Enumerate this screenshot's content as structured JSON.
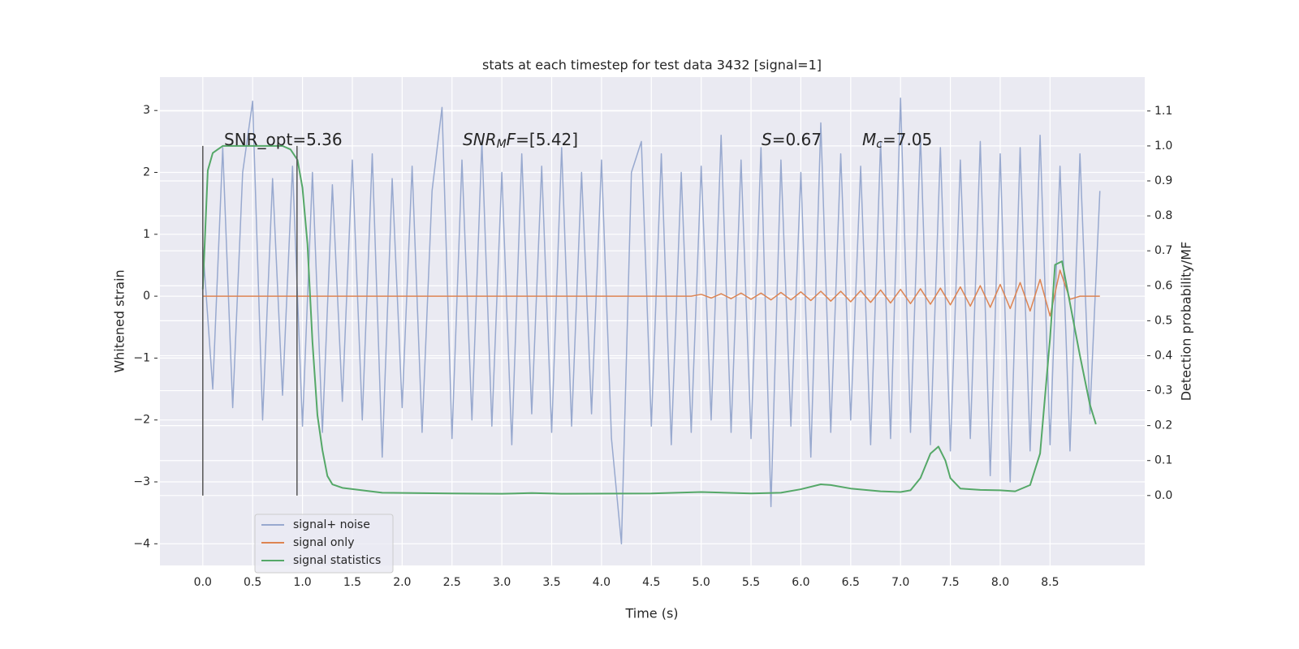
{
  "chart_data": {
    "type": "line",
    "title": "stats at each timestep for test data 3432 [signal=1]",
    "xlabel": "Time (s)",
    "ylabel": "Whitened strain",
    "y2label": "Detection probability/MF",
    "xlim": [
      -0.43,
      9.45
    ],
    "ylim": [
      -4.35,
      3.54
    ],
    "y2lim": [
      -0.2,
      1.197
    ],
    "xticks": [
      {
        "value": 0,
        "label": "0.0"
      },
      0.5,
      {
        "value": 1,
        "label": "1.0"
      },
      1.5,
      {
        "value": 2,
        "label": "2.0"
      },
      2.5,
      {
        "value": 3,
        "label": "3.0"
      },
      3.5,
      {
        "value": 4,
        "label": "4.0"
      },
      4.5,
      {
        "value": 5,
        "label": "5.0"
      },
      5.5,
      {
        "value": 6,
        "label": "6.0"
      },
      6.5,
      {
        "value": 7,
        "label": "7.0"
      },
      7.5,
      {
        "value": 8,
        "label": "8.0"
      },
      8.5
    ],
    "yticks": [
      {
        "value": -4,
        "label": "−4"
      },
      {
        "value": -3,
        "label": "−3"
      },
      {
        "value": -2,
        "label": "−2"
      },
      {
        "value": -1,
        "label": "−1"
      },
      0,
      1,
      2,
      3
    ],
    "y2ticks": [
      {
        "value": 0,
        "label": "0.0"
      },
      0.1,
      0.2,
      0.3,
      0.4,
      0.5,
      0.6,
      0.7,
      0.8,
      0.9,
      {
        "value": 1,
        "label": "1.0"
      },
      1.1
    ],
    "grid": true,
    "legend": "lower left",
    "x": [
      0,
      0.1,
      0.2,
      0.3,
      0.4,
      0.5,
      0.6,
      0.7,
      0.8,
      0.9,
      1,
      1.1,
      1.2,
      1.3,
      1.4,
      1.5,
      1.6,
      1.7,
      1.8,
      1.9,
      2,
      2.1,
      2.2,
      2.3,
      2.4,
      2.5,
      2.6,
      2.7,
      2.8,
      2.9,
      3,
      3.1,
      3.2,
      3.3,
      3.4,
      3.5,
      3.6,
      3.7,
      3.8,
      3.9,
      4,
      4.1,
      4.2,
      4.3,
      4.4,
      4.5,
      4.6,
      4.7,
      4.8,
      4.9,
      5,
      5.1,
      5.2,
      5.3,
      5.4,
      5.5,
      5.6,
      5.7,
      5.8,
      5.9,
      6,
      6.1,
      6.2,
      6.3,
      6.4,
      6.5,
      6.6,
      6.7,
      6.8,
      6.9,
      7,
      7.1,
      7.2,
      7.3,
      7.4,
      7.5,
      7.6,
      7.7,
      7.8,
      7.9,
      8,
      8.1,
      8.2,
      8.3,
      8.4,
      8.5,
      8.6,
      8.7,
      8.8,
      8.9,
      9
    ],
    "series": [
      {
        "name": "signal+ noise",
        "color": "#98a9cf",
        "values": [
          0.8,
          -1.5,
          2.4,
          -1.8,
          2.0,
          3.15,
          -2.0,
          1.9,
          -1.6,
          2.1,
          -2.1,
          2.0,
          -2.2,
          1.8,
          -1.7,
          2.2,
          -2.0,
          2.3,
          -2.6,
          1.9,
          -1.8,
          2.1,
          -2.2,
          1.7,
          3.05,
          -2.3,
          2.2,
          -2.0,
          2.5,
          -2.1,
          2.0,
          -2.4,
          2.3,
          -1.9,
          2.1,
          -2.2,
          2.4,
          -2.1,
          2.0,
          -1.9,
          2.2,
          -2.3,
          -4.0,
          2.0,
          2.5,
          -2.1,
          2.3,
          -2.4,
          2.0,
          -2.2,
          2.1,
          -2.0,
          2.6,
          -2.2,
          2.2,
          -2.3,
          2.4,
          -3.4,
          2.2,
          -2.1,
          2.0,
          -2.6,
          2.8,
          -2.2,
          2.3,
          -2.0,
          2.1,
          -2.4,
          2.5,
          -2.3,
          3.2,
          -2.2,
          2.6,
          -2.4,
          2.4,
          -2.5,
          2.2,
          -2.3,
          2.5,
          -2.9,
          2.3,
          -3.0,
          2.4,
          -2.5,
          2.6,
          -2.4,
          2.1,
          -2.5,
          2.3,
          -1.9,
          1.7
        ]
      },
      {
        "name": "signal only",
        "color": "#dd8452",
        "values": [
          0,
          0,
          0,
          0,
          0,
          0,
          0,
          0,
          0,
          0,
          0,
          0,
          0,
          0,
          0,
          0,
          0,
          0,
          0,
          0,
          0,
          0,
          0,
          0,
          0,
          0,
          0,
          0,
          0,
          0,
          0,
          0,
          0,
          0,
          0,
          0,
          0,
          0,
          0,
          0,
          0,
          0,
          0,
          0,
          0,
          0,
          0,
          0,
          0,
          0,
          0.03,
          -0.03,
          0.04,
          -0.04,
          0.05,
          -0.05,
          0.05,
          -0.06,
          0.06,
          -0.06,
          0.07,
          -0.07,
          0.08,
          -0.08,
          0.08,
          -0.09,
          0.09,
          -0.1,
          0.1,
          -0.11,
          0.11,
          -0.12,
          0.12,
          -0.13,
          0.13,
          -0.14,
          0.15,
          -0.16,
          0.17,
          -0.18,
          0.19,
          -0.2,
          0.22,
          -0.24,
          0.27,
          -0.32,
          0.42,
          -0.05,
          0,
          0,
          0
        ]
      },
      {
        "name": "signal statistics",
        "color": "#55a868",
        "axis": "y2",
        "x": [
          0,
          0.05,
          0.1,
          0.15,
          0.2,
          0.3,
          0.4,
          0.5,
          0.6,
          0.7,
          0.8,
          0.88,
          0.95,
          1.0,
          1.05,
          1.1,
          1.15,
          1.2,
          1.25,
          1.3,
          1.4,
          1.6,
          1.8,
          2.5,
          3.0,
          3.3,
          3.6,
          4.5,
          5.0,
          5.5,
          5.8,
          6.0,
          6.2,
          6.3,
          6.5,
          6.8,
          7.0,
          7.1,
          7.2,
          7.3,
          7.38,
          7.45,
          7.5,
          7.6,
          7.8,
          8.0,
          8.15,
          8.3,
          8.4,
          8.5,
          8.55,
          8.62,
          8.7,
          8.8,
          8.9,
          8.96
        ],
        "values": [
          0.59,
          0.93,
          0.98,
          0.99,
          1.0,
          1.0,
          1.0,
          1.0,
          1.0,
          1.0,
          1.0,
          0.99,
          0.96,
          0.88,
          0.72,
          0.44,
          0.23,
          0.13,
          0.056,
          0.032,
          0.022,
          0.015,
          0.008,
          0.006,
          0.005,
          0.007,
          0.005,
          0.006,
          0.01,
          0.006,
          0.008,
          0.018,
          0.032,
          0.03,
          0.02,
          0.012,
          0.01,
          0.015,
          0.05,
          0.12,
          0.14,
          0.1,
          0.05,
          0.02,
          0.016,
          0.015,
          0.012,
          0.03,
          0.12,
          0.45,
          0.66,
          0.67,
          0.55,
          0.4,
          0.26,
          0.204
        ]
      }
    ],
    "vlines": {
      "x": [
        0,
        0.945
      ],
      "y2range": [
        0,
        1.0
      ],
      "color": "#555555"
    },
    "annotations": [
      {
        "parts": [
          {
            "text": "SNR_opt=5.36"
          }
        ]
      },
      {
        "parts": [
          {
            "text": "SNR",
            "italic": true
          },
          {
            "text": "M",
            "italic": true,
            "sub": true
          },
          {
            "text": "F",
            "italic": true
          },
          {
            "text": "=[5.42]"
          }
        ]
      },
      {
        "parts": [
          {
            "text": "S",
            "italic": true
          },
          {
            "text": "=0.67"
          }
        ]
      },
      {
        "parts": [
          {
            "text": "M",
            "italic": true
          },
          {
            "text": "c",
            "italic": true,
            "sub": true
          },
          {
            "text": "=7.05"
          }
        ]
      }
    ]
  }
}
